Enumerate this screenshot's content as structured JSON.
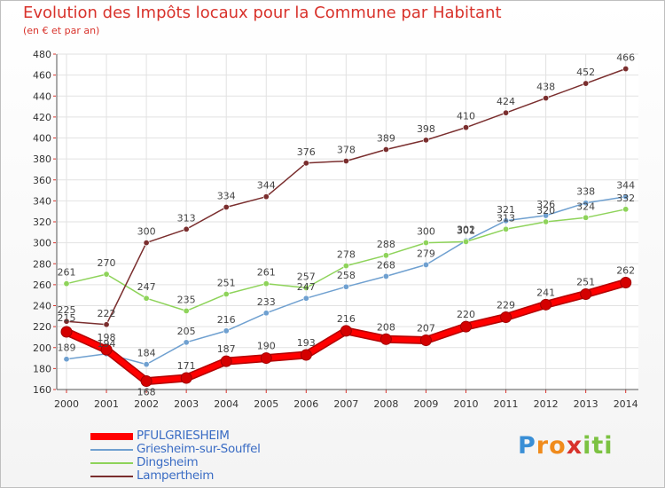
{
  "title": "Evolution des Impôts locaux pour la Commune par Habitant",
  "subtitle": "(en € et par an)",
  "logo": {
    "text": "Proxiti",
    "letters": [
      {
        "ch": "P",
        "color": "#3a8fd6"
      },
      {
        "ch": "r",
        "color": "#f08b1c"
      },
      {
        "ch": "o",
        "color": "#f08b1c"
      },
      {
        "ch": "x",
        "color": "#d8322b"
      },
      {
        "ch": "i",
        "color": "#7cc242"
      },
      {
        "ch": "t",
        "color": "#7cc242"
      },
      {
        "ch": "i",
        "color": "#7cc242"
      }
    ]
  },
  "chart_data": {
    "type": "line",
    "title": "Evolution des Impôts locaux pour la Commune par Habitant",
    "subtitle": "(en € et par an)",
    "categories": [
      "2000",
      "2001",
      "2002",
      "2003",
      "2004",
      "2005",
      "2006",
      "2007",
      "2008",
      "2009",
      "2010",
      "2011",
      "2012",
      "2013",
      "2014"
    ],
    "ylim": [
      160,
      480
    ],
    "yticks": [
      160,
      180,
      200,
      220,
      240,
      260,
      280,
      300,
      320,
      340,
      360,
      380,
      400,
      420,
      440,
      460,
      480
    ],
    "grid": true,
    "legend_position": "bottom-left",
    "series": [
      {
        "name": "PFULGRIESHEIM",
        "color": "#ff0000",
        "values": [
          215,
          198,
          168,
          171,
          187,
          190,
          193,
          216,
          208,
          207,
          220,
          229,
          241,
          251,
          262
        ],
        "bold": true
      },
      {
        "name": "Griesheim-sur-Souffel",
        "color": "#6fa0d0",
        "values": [
          189,
          194,
          184,
          205,
          216,
          233,
          247,
          258,
          268,
          279,
          302,
          321,
          326,
          338,
          344
        ],
        "bold": false
      },
      {
        "name": "Dingsheim",
        "color": "#8ed35a",
        "values": [
          261,
          270,
          247,
          235,
          251,
          261,
          257,
          278,
          288,
          300,
          301,
          313,
          320,
          324,
          332
        ],
        "bold": false
      },
      {
        "name": "Lampertheim",
        "color": "#7a2e2e",
        "values": [
          225,
          222,
          300,
          313,
          334,
          344,
          376,
          378,
          389,
          398,
          410,
          424,
          438,
          452,
          466
        ],
        "bold": false
      }
    ]
  }
}
